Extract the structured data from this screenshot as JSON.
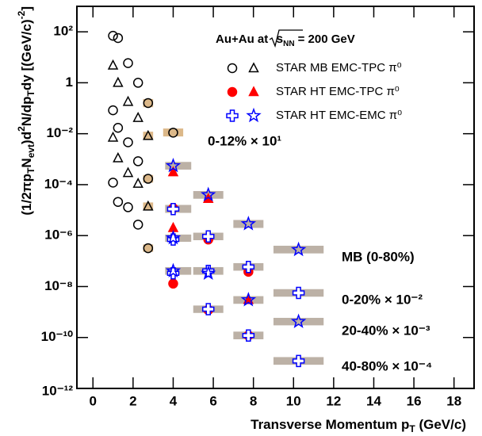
{
  "chart_data": {
    "type": "scatter",
    "legend_title": [
      "Au+Au at",
      "s",
      "NN",
      "= 200 GeV"
    ],
    "xlabel": [
      "Transverse Momentum p",
      "T",
      " (GeV/c)"
    ],
    "ylabel": [
      [
        "(1/2πp",
        ""
      ],
      [
        "T",
        "sub"
      ],
      [
        "N",
        ""
      ],
      [
        "evt",
        "sub"
      ],
      [
        ")d",
        ""
      ],
      [
        "2",
        "sup"
      ],
      [
        "N/dp",
        ""
      ],
      [
        "T",
        "sub"
      ],
      [
        "dy [(GeV/c)",
        ""
      ],
      [
        "-2",
        "sup"
      ],
      [
        "]",
        ""
      ]
    ],
    "log_y": true,
    "xlim": [
      -0.8,
      19
    ],
    "ylim": [
      1e-12,
      1000
    ],
    "xticks": [
      0,
      2,
      4,
      6,
      8,
      10,
      12,
      14,
      16,
      18
    ],
    "yticks": [
      {
        "value": 100,
        "label": "10²"
      },
      1,
      {
        "value": 0.01,
        "label": "10⁻²"
      },
      {
        "value": 0.0001,
        "label": "10⁻⁴"
      },
      {
        "value": 1e-06,
        "label": "10⁻⁶"
      },
      {
        "value": 1e-08,
        "label": "10⁻⁸"
      },
      {
        "value": 1e-10,
        "label": "10⁻¹⁰"
      },
      {
        "value": 1e-12,
        "label": "10⁻¹²"
      }
    ],
    "bands": [
      {
        "color": "#bcb1a6",
        "x": [
          3.6,
          4.9
        ],
        "y": [
          0.00039,
          0.00078
        ]
      },
      {
        "color": "#bcb1a6",
        "x": [
          3.6,
          4.9
        ],
        "y": [
          7.8e-06,
          1.6e-05
        ]
      },
      {
        "color": "#bcb1a6",
        "x": [
          3.6,
          4.9
        ],
        "y": [
          5.7e-07,
          1.1e-06
        ]
      },
      {
        "color": "#bcb1a6",
        "x": [
          3.6,
          4.9
        ],
        "y": [
          2.9e-08,
          5.8e-08
        ]
      },
      {
        "color": "#bcb1a6",
        "x": [
          5.0,
          6.5
        ],
        "y": [
          2.8e-05,
          5.6e-05
        ]
      },
      {
        "color": "#bcb1a6",
        "x": [
          5.0,
          6.5
        ],
        "y": [
          6.6e-07,
          1.3e-06
        ]
      },
      {
        "color": "#bcb1a6",
        "x": [
          5.0,
          6.5
        ],
        "y": [
          2.9e-08,
          5.8e-08
        ]
      },
      {
        "color": "#bcb1a6",
        "x": [
          5.0,
          6.5
        ],
        "y": [
          9.2e-10,
          1.8e-09
        ]
      },
      {
        "color": "#bcb1a6",
        "x": [
          7.0,
          8.5
        ],
        "y": [
          2e-06,
          4.1e-06
        ]
      },
      {
        "color": "#bcb1a6",
        "x": [
          7.0,
          8.5
        ],
        "y": [
          4.2e-08,
          8.3e-08
        ]
      },
      {
        "color": "#bcb1a6",
        "x": [
          7.0,
          8.5
        ],
        "y": [
          2.1e-09,
          4.2e-09
        ]
      },
      {
        "color": "#bcb1a6",
        "x": [
          7.0,
          8.5
        ],
        "y": [
          8.5e-11,
          1.7e-10
        ]
      },
      {
        "color": "#bcb1a6",
        "x": [
          9.0,
          11.5
        ],
        "y": [
          2e-07,
          4e-07
        ]
      },
      {
        "color": "#bcb1a6",
        "x": [
          9.0,
          11.5
        ],
        "y": [
          4e-09,
          7.9e-09
        ]
      },
      {
        "color": "#bcb1a6",
        "x": [
          9.0,
          11.5
        ],
        "y": [
          3e-10,
          5.9e-10
        ]
      },
      {
        "color": "#bcb1a6",
        "x": [
          9.0,
          11.5
        ],
        "y": [
          8.5e-12,
          1.7e-11
        ]
      },
      {
        "color": "#dcb889",
        "x": [
          2.5,
          3.0
        ],
        "y": [
          0.11,
          0.23
        ]
      },
      {
        "color": "#dcb889",
        "x": [
          2.5,
          3.0
        ],
        "y": [
          0.0058,
          0.012
        ]
      },
      {
        "color": "#dcb889",
        "x": [
          2.5,
          3.0
        ],
        "y": [
          0.00012,
          0.00024
        ]
      },
      {
        "color": "#dcb889",
        "x": [
          2.5,
          3.0
        ],
        "y": [
          1e-05,
          2e-05
        ]
      },
      {
        "color": "#dcb889",
        "x": [
          2.5,
          3.0
        ],
        "y": [
          2.3e-07,
          4.5e-07
        ]
      },
      {
        "color": "#dcb889",
        "x": [
          3.5,
          4.5
        ],
        "y": [
          0.0078,
          0.016
        ]
      }
    ],
    "series": [
      {
        "name": "STAR MB EMC-TPC π⁰",
        "marker": "circle",
        "filled": false,
        "color": "#000000",
        "x": [
          1.0,
          1.25,
          1.75,
          2.25,
          2.75,
          4.0,
          1.0,
          1.25,
          1.75,
          2.25,
          2.75,
          1.0,
          1.25,
          1.75,
          2.25,
          2.75
        ],
        "values": [
          70,
          57,
          5.9,
          1.0,
          0.16,
          0.011,
          0.083,
          0.017,
          0.0046,
          0.00083,
          0.00017,
          0.00012,
          2.1e-05,
          1.3e-05,
          2.7e-06,
          3.2e-07
        ]
      },
      {
        "marker": "triangle",
        "filled": false,
        "color": "#000000",
        "x": [
          1.0,
          1.25,
          1.75,
          2.25,
          2.75,
          1.0,
          1.25,
          1.75,
          2.25,
          2.75
        ],
        "values": [
          4.8,
          1.0,
          0.18,
          0.042,
          0.0082,
          0.0071,
          0.0011,
          0.00029,
          0.00011,
          1.4e-05
        ]
      },
      {
        "name": "STAR HT EMC-TPC π⁰",
        "marker": "circle",
        "filled": true,
        "color": "#ff0000",
        "x": [
          4,
          4,
          5.75,
          5.75,
          7.75,
          7.75
        ],
        "values": [
          1.2e-05,
          1.3e-08,
          7e-07,
          1.2e-09,
          3.8e-08,
          1.2e-10
        ]
      },
      {
        "marker": "triangle",
        "filled": true,
        "color": "#ff0000",
        "x": [
          4,
          4,
          5.75,
          7.75
        ],
        "values": [
          0.00031,
          2e-06,
          2.8e-05,
          3e-09
        ]
      },
      {
        "name": "STAR HT EMC-EMC π⁰",
        "marker": "cross",
        "filled": false,
        "color": "#0000ff",
        "x": [
          4,
          4,
          4,
          5.75,
          5.75,
          5.75,
          7.75,
          7.75,
          10.25,
          10.25
        ],
        "values": [
          1.1e-05,
          7e-07,
          3.3e-08,
          9.3e-07,
          4.1e-08,
          1.3e-09,
          5.9e-08,
          1.2e-10,
          5.6e-09,
          1.2e-11
        ]
      },
      {
        "marker": "star",
        "filled": false,
        "color": "#0000ff",
        "x": [
          4,
          4,
          4,
          5.75,
          5.75,
          7.75,
          7.75,
          10.25,
          10.25
        ],
        "values": [
          0.00055,
          8.1e-07,
          4.1e-08,
          4e-05,
          3.3e-08,
          2.9e-06,
          3e-09,
          2.8e-07,
          4.2e-10
        ]
      }
    ],
    "annotations": [
      "0-12% × 10¹",
      "MB (0-80%)",
      "0-20% × 10⁻²",
      "20-40% × 10⁻³",
      "40-80% × 10⁻⁴"
    ]
  }
}
